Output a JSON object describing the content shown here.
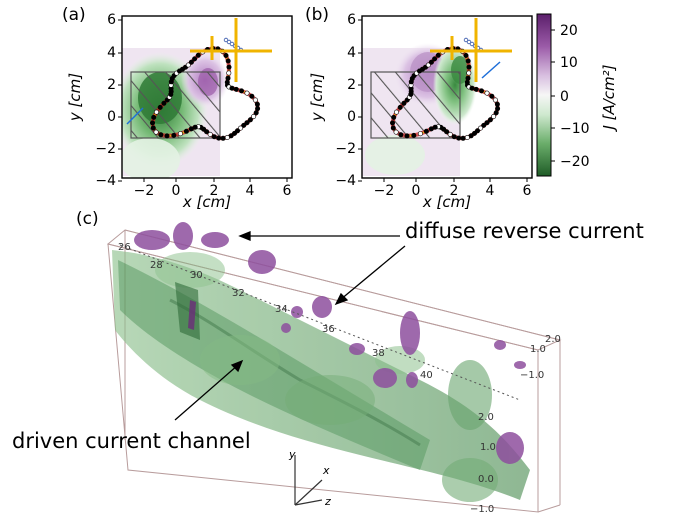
{
  "panels": {
    "a": "(a)",
    "b": "(b)",
    "c": "(c)"
  },
  "xaxis": {
    "label": "x [cm]",
    "ticks": [
      "−2",
      "0",
      "2",
      "4",
      "6"
    ],
    "range": [
      -3,
      6
    ]
  },
  "yaxis": {
    "label": "y [cm]",
    "ticks": [
      "6",
      "4",
      "2",
      "0",
      "−2",
      "−4"
    ],
    "range": [
      -4,
      6
    ]
  },
  "colorbar": {
    "label": "J [A/cm²]",
    "ticks": [
      "20",
      "10",
      "0",
      "−10",
      "−20"
    ],
    "range": [
      -25,
      25
    ],
    "colors": [
      "#3d7a3d",
      "#5fa05f",
      "#9dcd9d",
      "#d2ebd2",
      "#f4f4f4",
      "#e4d3e8",
      "#c9a3d3",
      "#9b5ba8",
      "#6b2d7a"
    ]
  },
  "annotations": {
    "reverse": "diffuse reverse current",
    "driven": "driven current channel"
  },
  "volume": {
    "z_ticks": [
      "28",
      "30",
      "32",
      "34",
      "36",
      "38",
      "40"
    ],
    "y_ticks": [
      "2.0",
      "1.0",
      "0.0",
      "−1.0"
    ],
    "x_ticks": [
      "2.0",
      "1.0",
      "−1.0"
    ],
    "axis_y": "y",
    "axis_x": "x",
    "axis_z": "z",
    "corner_label": "26"
  }
}
